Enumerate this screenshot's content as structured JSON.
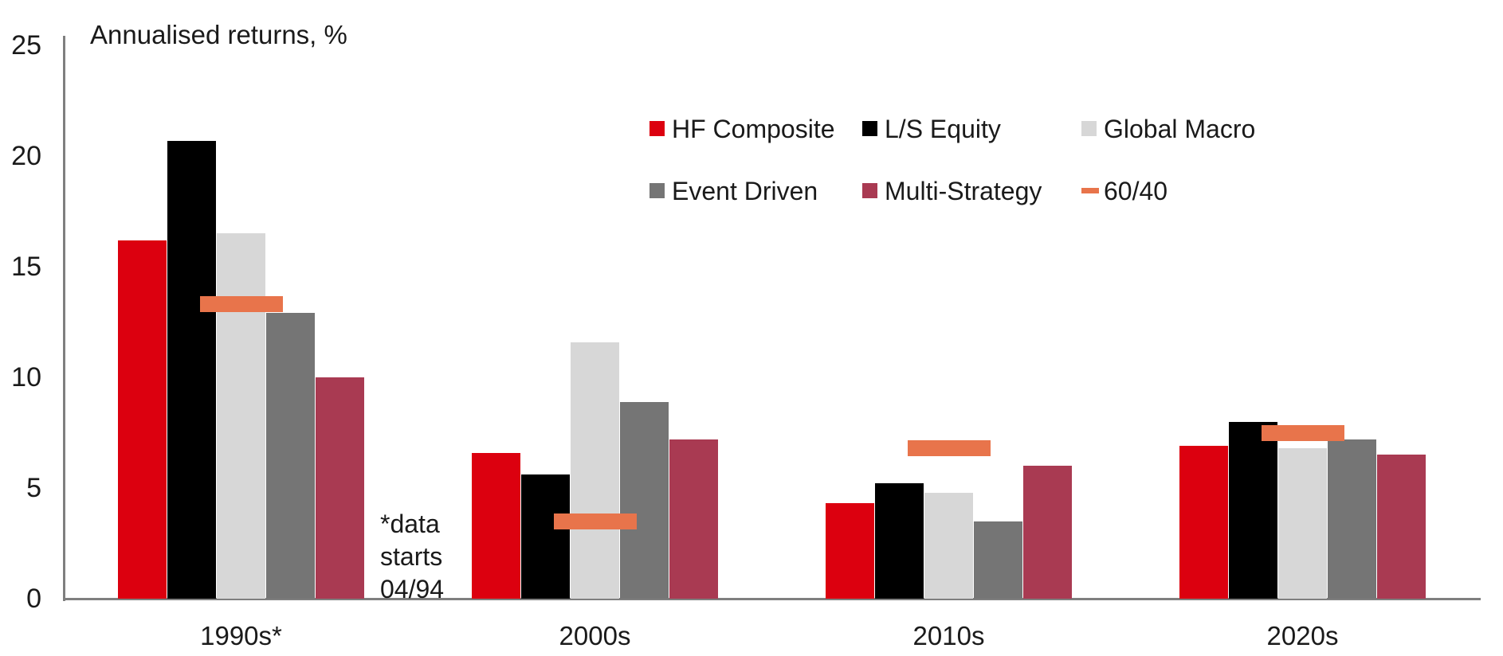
{
  "chart_data": {
    "type": "bar",
    "title": "Annualised returns, %",
    "categories": [
      "1990s*",
      "2000s",
      "2010s",
      "2020s"
    ],
    "series": [
      {
        "name": "HF Composite",
        "color": "#dc000f",
        "values": [
          16.2,
          6.6,
          4.3,
          6.9
        ]
      },
      {
        "name": "L/S Equity",
        "color": "#000000",
        "values": [
          20.7,
          5.6,
          5.2,
          8.0
        ]
      },
      {
        "name": "Global Macro",
        "color": "#d7d7d7",
        "values": [
          16.5,
          11.6,
          4.8,
          6.8
        ]
      },
      {
        "name": "Event Driven",
        "color": "#757575",
        "values": [
          12.9,
          8.9,
          3.5,
          7.2
        ]
      },
      {
        "name": "Multi-Strategy",
        "color": "#a93a52",
        "values": [
          10.0,
          7.2,
          6.0,
          6.5
        ]
      }
    ],
    "marker_series": {
      "name": "60/40",
      "color": "#e8744b",
      "style": "dash",
      "values": [
        13.3,
        3.5,
        6.8,
        7.5
      ]
    },
    "ylim": [
      0,
      25
    ],
    "yticks": [
      25,
      20,
      15,
      10,
      5,
      0
    ],
    "grid": false,
    "legend_position": "top-center",
    "axis_color": "#7f7f7f",
    "footnote_lines": [
      "*data",
      "starts",
      "04/94"
    ]
  }
}
